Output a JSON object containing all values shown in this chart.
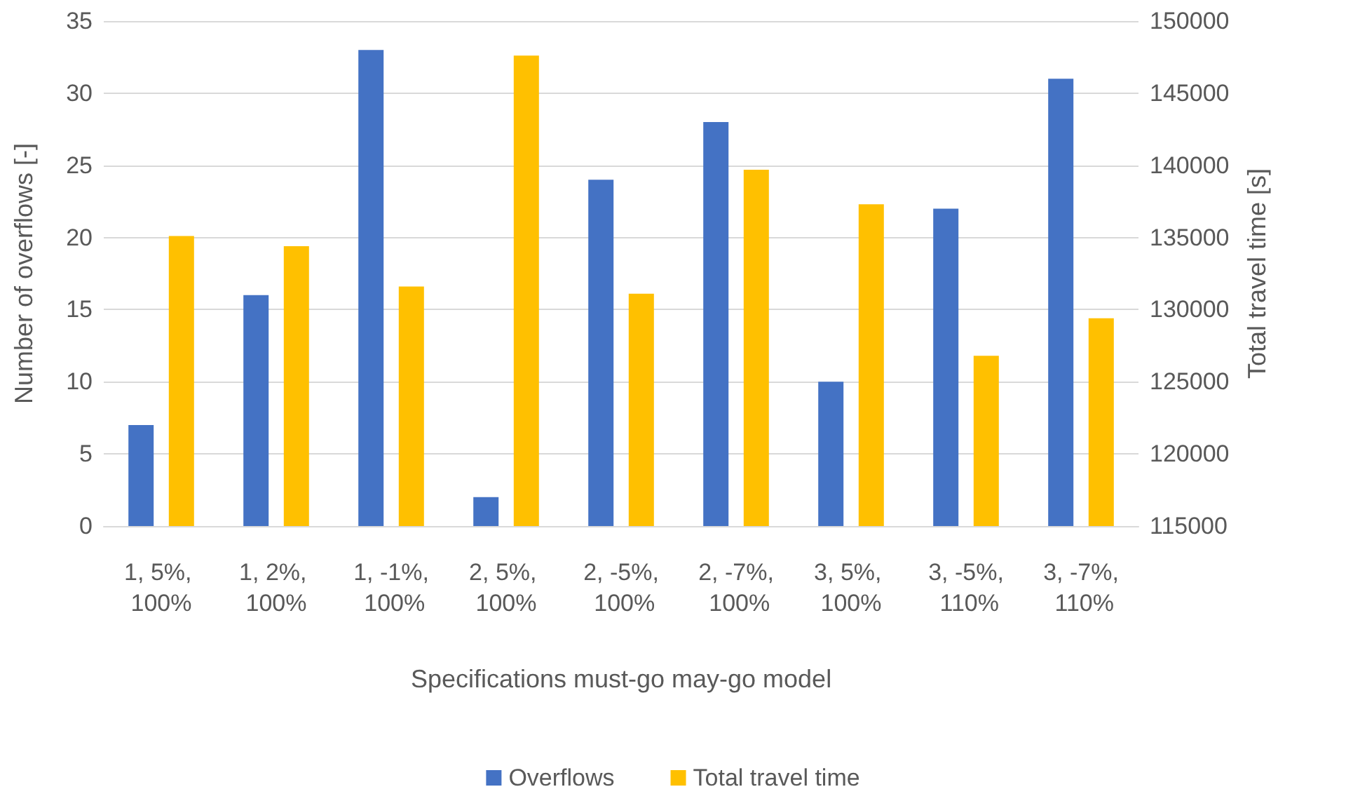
{
  "chart_data": {
    "type": "bar",
    "xlabel": "Specifications must-go may-go model",
    "ylabel": "Number of overflows [-]",
    "y2label": "Total travel time [s]",
    "categories": [
      "1, 5%, 100%",
      "1, 2%, 100%",
      "1, -1%, 100%",
      "2, 5%, 100%",
      "2, -5%, 100%",
      "2, -7%, 100%",
      "3, 5%, 100%",
      "3, -5%, 110%",
      "3, -7%, 110%"
    ],
    "series": [
      {
        "name": "Overflows",
        "color": "#4472c4",
        "values": [
          7,
          16,
          33,
          2,
          24,
          28,
          10,
          22,
          31
        ]
      },
      {
        "name": "Total travel time",
        "color": "#ffc000",
        "axis": "y2",
        "values": [
          135100,
          134400,
          131600,
          147600,
          131100,
          139700,
          137300,
          126800,
          129400
        ]
      }
    ],
    "ylim": [
      0,
      35
    ],
    "yticks": [
      0,
      5,
      10,
      15,
      20,
      25,
      30,
      35
    ],
    "y2lim": [
      115000,
      150000
    ],
    "y2ticks": [
      115000,
      120000,
      125000,
      130000,
      135000,
      140000,
      145000,
      150000
    ],
    "grid": "y",
    "legend": "bottom"
  }
}
